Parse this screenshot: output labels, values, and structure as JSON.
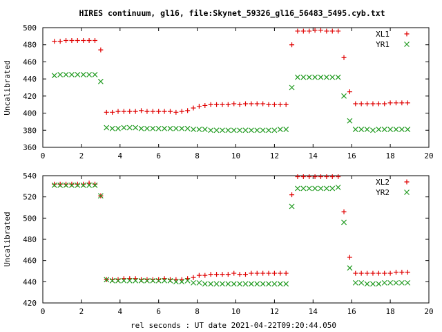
{
  "title": "HIRES continuum, gl16, file:Skynet_59326_gl16_56483_5495.cyb.txt",
  "xlabel": "rel seconds : UT date 2021-04-22T09:20:44.050",
  "colors": {
    "red": "#e00000",
    "green": "#209a20"
  },
  "chart_data": [
    {
      "type": "scatter",
      "title": "HIRES continuum, gl16, file:Skynet_59326_gl16_56483_5495.cyb.txt",
      "ylabel": "Uncalibrated",
      "xlim": [
        0,
        20
      ],
      "ylim": [
        360,
        500
      ],
      "xticks": [
        "0",
        "2",
        "4",
        "6",
        "8",
        "10",
        "12",
        "14",
        "16",
        "18",
        "20"
      ],
      "yticks": [
        "360",
        "380",
        "400",
        "420",
        "440",
        "460",
        "480",
        "500"
      ],
      "legend_position": "top-right",
      "x": [
        0.6,
        0.9,
        1.2,
        1.5,
        1.8,
        2.1,
        2.4,
        2.7,
        3.0,
        3.3,
        3.6,
        3.9,
        4.2,
        4.5,
        4.8,
        5.1,
        5.4,
        5.7,
        6.0,
        6.3,
        6.6,
        6.9,
        7.2,
        7.5,
        7.8,
        8.1,
        8.4,
        8.7,
        9.0,
        9.3,
        9.6,
        9.9,
        10.2,
        10.5,
        10.8,
        11.1,
        11.4,
        11.7,
        12.0,
        12.3,
        12.6,
        12.9,
        13.2,
        13.5,
        13.8,
        14.1,
        14.4,
        14.7,
        15.0,
        15.3,
        15.6,
        15.9,
        16.2,
        16.5,
        16.8,
        17.1,
        17.4,
        17.7,
        18.0,
        18.3,
        18.6,
        18.9
      ],
      "series": [
        {
          "name": "XL1",
          "marker": "plus",
          "color": "#e00000",
          "values": [
            484,
            484,
            485,
            485,
            485,
            485,
            485,
            485,
            474,
            401,
            401,
            402,
            402,
            402,
            402,
            403,
            402,
            402,
            402,
            402,
            402,
            401,
            402,
            403,
            406,
            408,
            409,
            410,
            410,
            410,
            410,
            411,
            410,
            411,
            411,
            411,
            411,
            410,
            410,
            410,
            410,
            480,
            496,
            496,
            496,
            497,
            497,
            496,
            496,
            496,
            465,
            425,
            411,
            411,
            411,
            411,
            411,
            411,
            412,
            412,
            412,
            412
          ]
        },
        {
          "name": "YR1",
          "marker": "cross",
          "color": "#209a20",
          "values": [
            444,
            445,
            445,
            445,
            445,
            445,
            445,
            445,
            437,
            383,
            382,
            382,
            383,
            383,
            383,
            382,
            382,
            382,
            382,
            382,
            382,
            382,
            382,
            382,
            381,
            381,
            381,
            380,
            380,
            380,
            380,
            380,
            380,
            380,
            380,
            380,
            380,
            380,
            380,
            381,
            381,
            430,
            442,
            442,
            442,
            442,
            442,
            442,
            442,
            442,
            420,
            391,
            381,
            381,
            381,
            380,
            381,
            381,
            381,
            381,
            381,
            381
          ]
        }
      ]
    },
    {
      "type": "scatter",
      "title": "",
      "ylabel": "Uncalibrated",
      "xlabel": "rel seconds : UT date 2021-04-22T09:20:44.050",
      "xlim": [
        0,
        20
      ],
      "ylim": [
        420,
        540
      ],
      "xticks": [
        "0",
        "2",
        "4",
        "6",
        "8",
        "10",
        "12",
        "14",
        "16",
        "18",
        "20"
      ],
      "yticks": [
        "420",
        "440",
        "460",
        "480",
        "500",
        "520",
        "540"
      ],
      "legend_position": "top-right",
      "x": [
        0.6,
        0.9,
        1.2,
        1.5,
        1.8,
        2.1,
        2.4,
        2.7,
        3.0,
        3.3,
        3.6,
        3.9,
        4.2,
        4.5,
        4.8,
        5.1,
        5.4,
        5.7,
        6.0,
        6.3,
        6.6,
        6.9,
        7.2,
        7.5,
        7.8,
        8.1,
        8.4,
        8.7,
        9.0,
        9.3,
        9.6,
        9.9,
        10.2,
        10.5,
        10.8,
        11.1,
        11.4,
        11.7,
        12.0,
        12.3,
        12.6,
        12.9,
        13.2,
        13.5,
        13.8,
        14.1,
        14.4,
        14.7,
        15.0,
        15.3,
        15.6,
        15.9,
        16.2,
        16.5,
        16.8,
        17.1,
        17.4,
        17.7,
        18.0,
        18.3,
        18.6,
        18.9
      ],
      "series": [
        {
          "name": "XL2",
          "marker": "plus",
          "color": "#e00000",
          "values": [
            532,
            532,
            532,
            532,
            532,
            532,
            533,
            532,
            521,
            442,
            442,
            442,
            443,
            443,
            443,
            442,
            442,
            442,
            442,
            443,
            442,
            442,
            442,
            443,
            444,
            446,
            446,
            447,
            447,
            447,
            447,
            448,
            447,
            447,
            448,
            448,
            448,
            448,
            448,
            448,
            448,
            522,
            539,
            539,
            539,
            539,
            539,
            539,
            539,
            539,
            506,
            463,
            448,
            448,
            448,
            448,
            448,
            448,
            448,
            449,
            449,
            449
          ]
        },
        {
          "name": "YR2",
          "marker": "cross",
          "color": "#209a20",
          "values": [
            531,
            531,
            531,
            531,
            531,
            531,
            531,
            531,
            521,
            442,
            441,
            441,
            441,
            441,
            441,
            441,
            441,
            441,
            441,
            441,
            441,
            440,
            440,
            441,
            439,
            439,
            438,
            438,
            438,
            438,
            438,
            438,
            438,
            438,
            438,
            438,
            438,
            438,
            438,
            438,
            438,
            511,
            528,
            528,
            528,
            528,
            528,
            528,
            528,
            529,
            496,
            453,
            439,
            439,
            438,
            438,
            438,
            439,
            439,
            439,
            439,
            439
          ]
        }
      ]
    }
  ]
}
